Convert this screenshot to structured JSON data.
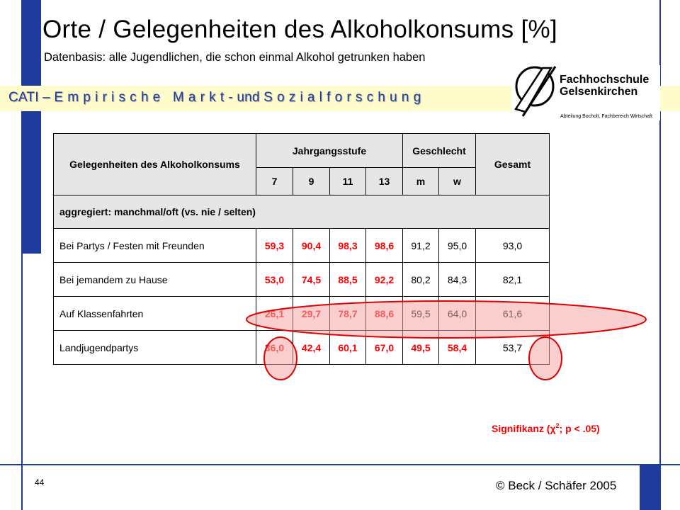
{
  "slide": {
    "title": "Orte / Gelegenheiten des Alkoholkonsums [%]",
    "subtitle": "Datenbasis: alle Jugendlichen, die schon einmal Alkohol getrunken haben",
    "banner_lead": "CATI – ",
    "banner_spaced_1": "Empirische Markt",
    "banner_middle": "- und ",
    "banner_spaced_2": "Sozialforschung",
    "page_number": "44",
    "copyright": "© Beck / Schäfer 2005",
    "significance_prefix": "Signifikanz (",
    "significance_chi": "χ",
    "significance_sup": "2",
    "significance_suffix": "; p < .05)"
  },
  "logo": {
    "line1": "Fachhochschule",
    "line2": "Gelsenkirchen",
    "line3": "Abteilung Bocholt, Fachbereich Wirtschaft"
  },
  "table": {
    "header_occasion": "Gelegenheiten des Alkoholkonsums",
    "header_grade": "Jahrgangsstufe",
    "header_gender": "Geschlecht",
    "header_total": "Gesamt",
    "sub_headers": [
      "7",
      "9",
      "11",
      "13",
      "m",
      "w"
    ],
    "aggregated_label": "aggregiert: manchmal/oft (vs. nie / selten)",
    "rows": [
      {
        "label": "Bei Partys / Festen mit Freunden",
        "values": [
          "59,3",
          "90,4",
          "98,3",
          "98,6",
          "91,2",
          "95,0",
          "93,0"
        ]
      },
      {
        "label": "Bei jemandem zu Hause",
        "values": [
          "53,0",
          "74,5",
          "88,5",
          "92,2",
          "80,2",
          "84,3",
          "82,1"
        ]
      },
      {
        "label": "Auf Klassenfahrten",
        "values": [
          "26,1",
          "29,7",
          "78,7",
          "88,6",
          "59,5",
          "64,0",
          "61,6"
        ]
      },
      {
        "label": "Landjugendpartys",
        "values": [
          "36,0",
          "42,4",
          "60,1",
          "67,0",
          "49,5",
          "58,4",
          "53,7"
        ]
      }
    ]
  },
  "colors": {
    "frame_blue": "#1f3b9e",
    "banner_yellow": "#fffccc",
    "highlight_red": "#ff0000",
    "ellipse_fill": "#f4a6a6",
    "header_gray": "#e6e6e6"
  }
}
